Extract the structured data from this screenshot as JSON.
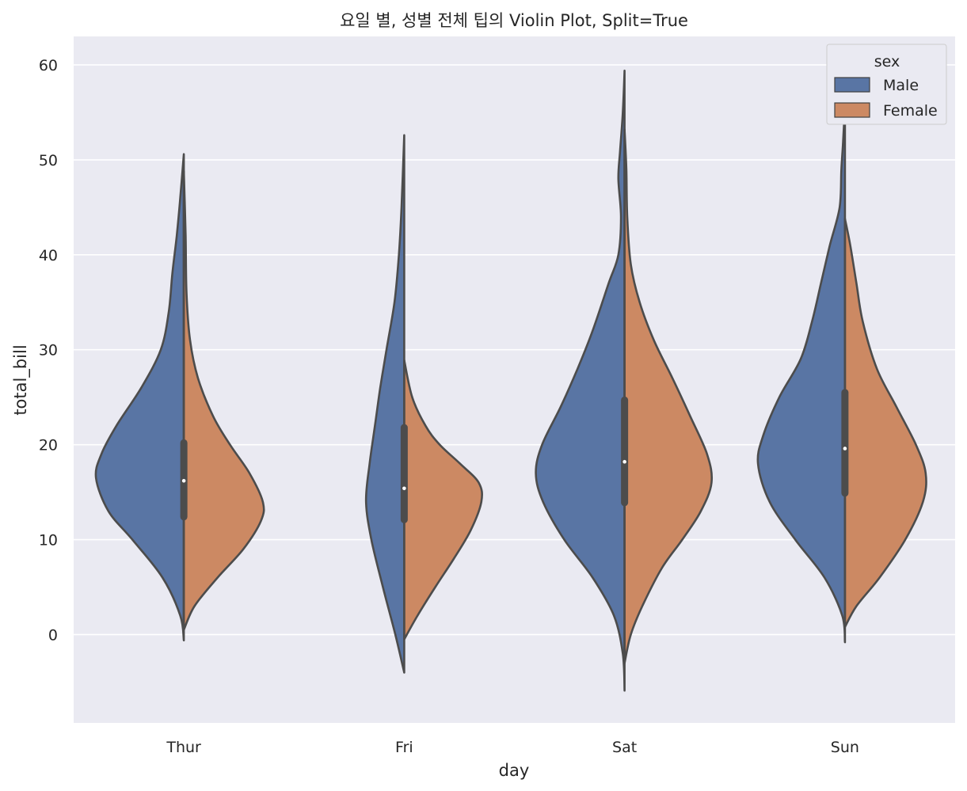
{
  "chart_data": {
    "type": "violin",
    "title": "요일 별, 성별 전체 팁의 Violin Plot, Split=True",
    "xlabel": "day",
    "ylabel": "total_bill",
    "categories": [
      "Thur",
      "Fri",
      "Sat",
      "Sun"
    ],
    "ylim": [
      -9.3,
      63
    ],
    "yticks": [
      0,
      10,
      20,
      30,
      40,
      50,
      60
    ],
    "grid": true,
    "split": true,
    "legend": {
      "title": "sex",
      "placement": "top-right"
    },
    "series": [
      {
        "name": "Male",
        "color": "#5975a4",
        "violins": [
          {
            "day": "Thur",
            "range": [
              -0.6,
              50.6
            ],
            "density": [
              [
                -0.6,
                0.0
              ],
              [
                2,
                0.04
              ],
              [
                6,
                0.24
              ],
              [
                10,
                0.58
              ],
              [
                13,
                0.85
              ],
              [
                16.5,
                0.99
              ],
              [
                19,
                0.93
              ],
              [
                22,
                0.76
              ],
              [
                26,
                0.48
              ],
              [
                30,
                0.26
              ],
              [
                34,
                0.17
              ],
              [
                38,
                0.13
              ],
              [
                42,
                0.08
              ],
              [
                46,
                0.04
              ],
              [
                50.6,
                0.0
              ]
            ]
          },
          {
            "day": "Fri",
            "range": [
              -4.0,
              52.6
            ],
            "density": [
              [
                -4,
                0.0
              ],
              [
                0,
                0.1
              ],
              [
                5,
                0.24
              ],
              [
                10,
                0.37
              ],
              [
                14,
                0.43
              ],
              [
                18,
                0.39
              ],
              [
                22,
                0.33
              ],
              [
                26,
                0.27
              ],
              [
                30,
                0.2
              ],
              [
                35,
                0.11
              ],
              [
                40,
                0.06
              ],
              [
                45,
                0.03
              ],
              [
                52.6,
                0.0
              ]
            ]
          },
          {
            "day": "Sat",
            "range": [
              -5.9,
              59.4
            ],
            "density": [
              [
                -5.9,
                0.0
              ],
              [
                -2,
                0.02
              ],
              [
                2,
                0.12
              ],
              [
                6,
                0.36
              ],
              [
                10,
                0.68
              ],
              [
                14,
                0.92
              ],
              [
                17,
                1.0
              ],
              [
                20,
                0.93
              ],
              [
                24,
                0.72
              ],
              [
                28,
                0.53
              ],
              [
                32,
                0.36
              ],
              [
                37,
                0.18
              ],
              [
                40,
                0.07
              ],
              [
                44,
                0.04
              ],
              [
                48,
                0.07
              ],
              [
                51,
                0.05
              ],
              [
                55,
                0.02
              ],
              [
                59.4,
                0.0
              ]
            ]
          },
          {
            "day": "Sun",
            "range": [
              -0.8,
              55.8
            ],
            "density": [
              [
                -0.8,
                0.0
              ],
              [
                2,
                0.03
              ],
              [
                6,
                0.23
              ],
              [
                10,
                0.56
              ],
              [
                14,
                0.85
              ],
              [
                18,
                0.98
              ],
              [
                21,
                0.92
              ],
              [
                25,
                0.74
              ],
              [
                29,
                0.5
              ],
              [
                33,
                0.37
              ],
              [
                37,
                0.27
              ],
              [
                41,
                0.17
              ],
              [
                45,
                0.06
              ],
              [
                49,
                0.04
              ],
              [
                52,
                0.02
              ],
              [
                55.8,
                0.0
              ]
            ]
          }
        ]
      },
      {
        "name": "Female",
        "color": "#cc8963",
        "violins": [
          {
            "day": "Thur",
            "range": [
              0.5,
              48.8
            ],
            "density": [
              [
                0.5,
                0.0
              ],
              [
                3,
                0.12
              ],
              [
                6,
                0.38
              ],
              [
                9,
                0.67
              ],
              [
                12,
                0.87
              ],
              [
                14,
                0.89
              ],
              [
                17,
                0.74
              ],
              [
                20,
                0.52
              ],
              [
                23,
                0.33
              ],
              [
                27,
                0.16
              ],
              [
                31,
                0.07
              ],
              [
                36,
                0.03
              ],
              [
                42,
                0.02
              ],
              [
                48.8,
                0.0
              ]
            ]
          },
          {
            "day": "Fri",
            "range": [
              -0.5,
              28.9
            ],
            "density": [
              [
                -0.5,
                0.0
              ],
              [
                2,
                0.15
              ],
              [
                5,
                0.35
              ],
              [
                8,
                0.56
              ],
              [
                11,
                0.75
              ],
              [
                14,
                0.87
              ],
              [
                16,
                0.84
              ],
              [
                18,
                0.63
              ],
              [
                20,
                0.4
              ],
              [
                22,
                0.24
              ],
              [
                25,
                0.09
              ],
              [
                28.9,
                0.0
              ]
            ]
          },
          {
            "day": "Sat",
            "range": [
              -3.0,
              53.2
            ],
            "density": [
              [
                -3,
                0.0
              ],
              [
                0,
                0.07
              ],
              [
                3,
                0.2
              ],
              [
                7,
                0.42
              ],
              [
                10,
                0.65
              ],
              [
                13,
                0.86
              ],
              [
                16,
                0.98
              ],
              [
                19,
                0.93
              ],
              [
                23,
                0.74
              ],
              [
                27,
                0.54
              ],
              [
                31,
                0.33
              ],
              [
                35,
                0.17
              ],
              [
                39,
                0.07
              ],
              [
                44,
                0.03
              ],
              [
                49,
                0.02
              ],
              [
                53.2,
                0.0
              ]
            ]
          },
          {
            "day": "Sun",
            "range": [
              0.8,
              43.8
            ],
            "density": [
              [
                0.8,
                0.0
              ],
              [
                3,
                0.13
              ],
              [
                6,
                0.39
              ],
              [
                10,
                0.68
              ],
              [
                14,
                0.88
              ],
              [
                17,
                0.91
              ],
              [
                20,
                0.8
              ],
              [
                24,
                0.58
              ],
              [
                28,
                0.36
              ],
              [
                33,
                0.2
              ],
              [
                37,
                0.13
              ],
              [
                41,
                0.06
              ],
              [
                43.8,
                0.0
              ]
            ]
          }
        ]
      }
    ],
    "box": [
      {
        "day": "Thur",
        "q1": 12.4,
        "median": 16.2,
        "q3": 20.2
      },
      {
        "day": "Fri",
        "q1": 12.1,
        "median": 15.4,
        "q3": 21.8
      },
      {
        "day": "Sat",
        "q1": 13.9,
        "median": 18.2,
        "q3": 24.7
      },
      {
        "day": "Sun",
        "q1": 14.9,
        "median": 19.6,
        "q3": 25.5
      }
    ]
  }
}
